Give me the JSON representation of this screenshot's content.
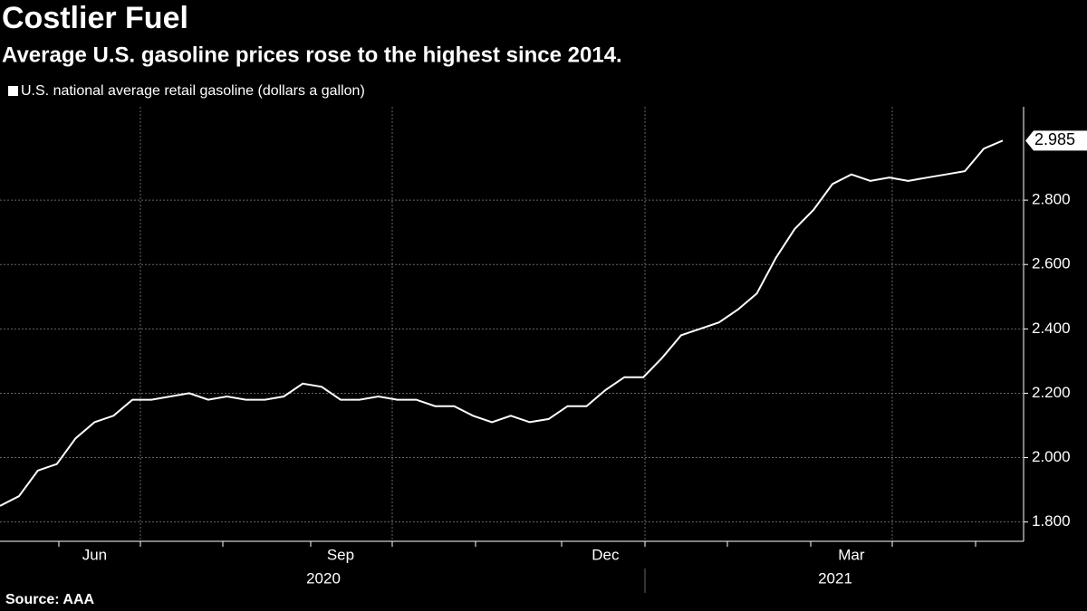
{
  "chart_data": {
    "type": "line",
    "title": "Costlier Fuel",
    "subtitle": "Average U.S. gasoline prices rose to the highest since 2014.",
    "source": "Source: AAA",
    "categories": [
      null,
      null,
      null,
      null,
      null,
      "Jun",
      null,
      null,
      null,
      null,
      null,
      null,
      null,
      null,
      null,
      null,
      null,
      null,
      "Sep",
      null,
      null,
      null,
      null,
      null,
      null,
      null,
      null,
      null,
      null,
      null,
      null,
      null,
      "Dec",
      null,
      null,
      null,
      null,
      null,
      null,
      null,
      null,
      null,
      null,
      null,
      null,
      "Mar",
      null,
      null,
      null,
      null,
      null,
      null,
      null,
      null
    ],
    "x_group_labels": [
      "2020",
      "2021"
    ],
    "series": [
      {
        "name": "U.S. national average retail gasoline (dollars a gallon)",
        "color": "#ffffff",
        "values": [
          1.85,
          1.88,
          1.96,
          1.98,
          2.06,
          2.11,
          2.13,
          2.18,
          2.18,
          2.19,
          2.2,
          2.18,
          2.19,
          2.18,
          2.18,
          2.19,
          2.23,
          2.22,
          2.18,
          2.18,
          2.19,
          2.18,
          2.18,
          2.16,
          2.16,
          2.13,
          2.11,
          2.13,
          2.11,
          2.12,
          2.16,
          2.16,
          2.21,
          2.25,
          2.25,
          2.31,
          2.38,
          2.4,
          2.42,
          2.46,
          2.51,
          2.62,
          2.71,
          2.77,
          2.85,
          2.88,
          2.86,
          2.87,
          2.86,
          2.87,
          2.88,
          2.89,
          2.96,
          2.985
        ]
      }
    ],
    "ylim": [
      1.74,
      3.09
    ],
    "yticks": [
      {
        "value": 1.8,
        "label": "1.800"
      },
      {
        "value": 2.0,
        "label": "2.000"
      },
      {
        "value": 2.2,
        "label": "2.200"
      },
      {
        "value": 2.4,
        "label": "2.400"
      },
      {
        "value": 2.6,
        "label": "2.600"
      },
      {
        "value": 2.8,
        "label": "2.800"
      }
    ],
    "grid": true
  }
}
